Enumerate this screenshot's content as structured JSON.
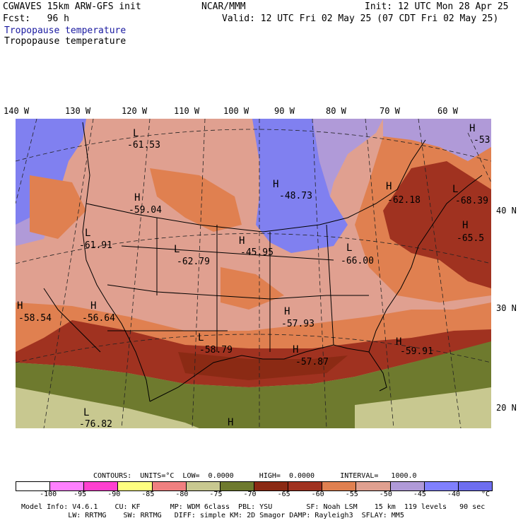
{
  "header": {
    "model_line": "CGWAVES 15km ARW-GFS init",
    "center": "NCAR/MMM",
    "init": "Init: 12 UTC Mon 28 Apr 25",
    "fcst": "Fcst:   96 h",
    "valid": "Valid: 12 UTC Fri 02 May 25 (07 CDT Fri 02 May 25)",
    "field1": "Tropopause temperature",
    "field2": "Tropopause temperature"
  },
  "lon_labels": [
    "140 W",
    "130 W",
    "120 W",
    "110 W",
    "100 W",
    "90 W",
    "80 W",
    "70 W",
    "60 W"
  ],
  "lat_labels": [
    "40 N",
    "30 N",
    "20 N"
  ],
  "map_labels": [
    {
      "letter": "L",
      "value": "-61.53"
    },
    {
      "letter": "H",
      "value": "-59.04"
    },
    {
      "letter": "L",
      "value": "-61.91"
    },
    {
      "letter": "L",
      "value": "-62.79"
    },
    {
      "letter": "H",
      "value": "-45.95"
    },
    {
      "letter": "H",
      "value": "-48.73"
    },
    {
      "letter": "H",
      "value": "-62.18"
    },
    {
      "letter": "L",
      "value": "-68.39"
    },
    {
      "letter": "H",
      "value": "-65.5"
    },
    {
      "letter": "L",
      "value": "-66.00"
    },
    {
      "letter": "H",
      "value": "-58.54"
    },
    {
      "letter": "H",
      "value": "-56.64"
    },
    {
      "letter": "H",
      "value": "-57.93"
    },
    {
      "letter": "L",
      "value": "-58.79"
    },
    {
      "letter": "H",
      "value": "-57.87"
    },
    {
      "letter": "H",
      "value": "-59.91"
    },
    {
      "letter": "L",
      "value": "-76.82"
    },
    {
      "letter": "H",
      "value": ""
    },
    {
      "letter": "H",
      "value": "-53"
    }
  ],
  "contour_line": "CONTOURS:  UNITS=°C  LOW=  0.0000      HIGH=  0.0000      INTERVAL=   1000.0",
  "colorbar": {
    "colors": [
      "#ffffff",
      "#ff80ff",
      "#ff40d0",
      "#ffff80",
      "#f08080",
      "#c8c890",
      "#6e7a2e",
      "#8b2a14",
      "#a03220",
      "#e08050",
      "#e0a090",
      "#b09ad8",
      "#8080ff",
      "#6e6ef0"
    ],
    "ticks": [
      "-100",
      "-95",
      "-90",
      "-85",
      "-80",
      "-75",
      "-70",
      "-65",
      "-60",
      "-55",
      "-50",
      "-45",
      "-40",
      "°C"
    ]
  },
  "footer": {
    "line1": "Model Info: V4.6.1    CU: KF       MP: WDM 6class  PBL: YSU        SF: Noah LSM    15 km  119 levels   90 sec",
    "line2": "           LW: RRTMG    SW: RRTMG   DIFF: simple KM: 2D Smagor DAMP: Rayleigh3  SFLAY: MM5"
  }
}
